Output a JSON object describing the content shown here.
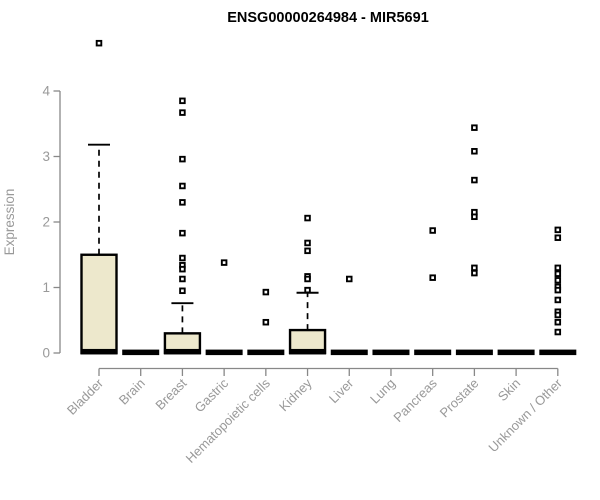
{
  "chart_data": {
    "type": "boxplot",
    "title": "ENSG00000264984 - MIR5691",
    "ylabel": "Expression",
    "xlabel": "",
    "ylim": [
      0,
      4
    ],
    "yticks": [
      0,
      1,
      2,
      3,
      4
    ],
    "grid": false,
    "legend": null,
    "colors": {
      "box_fill": "#EDE8CC",
      "box_stroke": "#000000",
      "median": "#000000",
      "whisker": "#000000",
      "outlier": "#000000",
      "axis": "#888888",
      "tick_label": "#999999",
      "title": "#000000",
      "background": "#ffffff"
    },
    "categories": [
      "Bladder",
      "Brain",
      "Breast",
      "Gastric",
      "Hematopoietic cells",
      "Kidney",
      "Liver",
      "Lung",
      "Pancreas",
      "Prostate",
      "Skin",
      "Unknown / Other"
    ],
    "series": [
      {
        "category": "Bladder",
        "q1": 0,
        "median": 0.02,
        "q3": 1.5,
        "whisker_low": 0,
        "whisker_high": 3.18,
        "outliers": [
          4.73
        ]
      },
      {
        "category": "Brain",
        "q1": 0,
        "median": 0.01,
        "q3": 0.02,
        "whisker_low": 0,
        "whisker_high": 0.02,
        "outliers": []
      },
      {
        "category": "Breast",
        "q1": 0,
        "median": 0.02,
        "q3": 0.3,
        "whisker_low": 0,
        "whisker_high": 0.76,
        "outliers": [
          3.85,
          3.67,
          2.96,
          2.55,
          2.3,
          1.83,
          1.45,
          1.34,
          1.28,
          1.13,
          0.95
        ]
      },
      {
        "category": "Gastric",
        "q1": 0,
        "median": 0.01,
        "q3": 0.02,
        "whisker_low": 0,
        "whisker_high": 0.02,
        "outliers": [
          1.38
        ]
      },
      {
        "category": "Hematopoietic cells",
        "q1": 0,
        "median": 0.01,
        "q3": 0.02,
        "whisker_low": 0,
        "whisker_high": 0.02,
        "outliers": [
          0.93,
          0.47
        ]
      },
      {
        "category": "Kidney",
        "q1": 0,
        "median": 0.02,
        "q3": 0.35,
        "whisker_low": 0,
        "whisker_high": 0.92,
        "outliers": [
          2.06,
          1.68,
          1.56,
          1.17,
          1.13,
          0.96
        ]
      },
      {
        "category": "Liver",
        "q1": 0,
        "median": 0.01,
        "q3": 0.02,
        "whisker_low": 0,
        "whisker_high": 0.02,
        "outliers": [
          1.13
        ]
      },
      {
        "category": "Lung",
        "q1": 0,
        "median": 0.01,
        "q3": 0.02,
        "whisker_low": 0,
        "whisker_high": 0.02,
        "outliers": []
      },
      {
        "category": "Pancreas",
        "q1": 0,
        "median": 0.01,
        "q3": 0.02,
        "whisker_low": 0,
        "whisker_high": 0.02,
        "outliers": [
          1.87,
          1.15
        ]
      },
      {
        "category": "Prostate",
        "q1": 0,
        "median": 0.01,
        "q3": 0.02,
        "whisker_low": 0,
        "whisker_high": 0.02,
        "outliers": [
          3.44,
          3.08,
          2.64,
          2.15,
          2.08,
          1.3,
          1.22
        ]
      },
      {
        "category": "Skin",
        "q1": 0,
        "median": 0.01,
        "q3": 0.02,
        "whisker_low": 0,
        "whisker_high": 0.02,
        "outliers": []
      },
      {
        "category": "Unknown / Other",
        "q1": 0,
        "median": 0.01,
        "q3": 0.02,
        "whisker_low": 0,
        "whisker_high": 0.02,
        "outliers": [
          1.88,
          1.76,
          1.3,
          1.21,
          1.11,
          1.01,
          0.96,
          0.81,
          0.63,
          0.58,
          0.47,
          0.32
        ]
      }
    ]
  }
}
